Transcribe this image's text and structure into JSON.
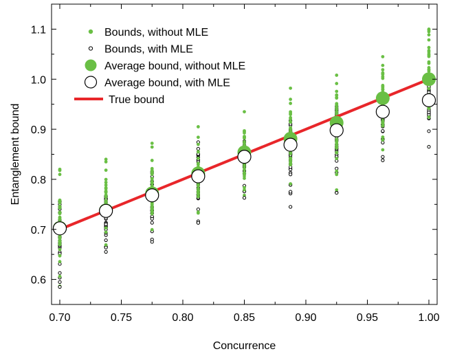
{
  "chart_data": {
    "type": "scatter",
    "title": "",
    "xlabel": "Concurrence",
    "ylabel": "Entanglement bound",
    "xlim": [
      0.7,
      1.0
    ],
    "ylim": [
      0.55,
      1.15
    ],
    "xticks": [
      "0.70",
      "0.75",
      "0.80",
      "0.85",
      "0.90",
      "0.95",
      "1.00"
    ],
    "yticks": [
      "0.6",
      "0.7",
      "0.8",
      "0.9",
      "1.0",
      "1.1"
    ],
    "grid": false,
    "legend_position": "top-left",
    "x": [
      0.7,
      0.7375,
      0.775,
      0.8125,
      0.85,
      0.8875,
      0.925,
      0.9625,
      1.0
    ],
    "series": [
      {
        "name": "Bounds, without MLE",
        "marker": "small-filled-circle",
        "color": "#6abf45",
        "ranges": [
          [
            0.585,
            0.82
          ],
          [
            0.655,
            0.84
          ],
          [
            0.675,
            0.872
          ],
          [
            0.713,
            0.905
          ],
          [
            0.763,
            0.935
          ],
          [
            0.745,
            0.982
          ],
          [
            0.773,
            1.008
          ],
          [
            0.838,
            1.045
          ],
          [
            0.865,
            1.1
          ]
        ]
      },
      {
        "name": "Bounds, with MLE",
        "marker": "small-open-circle",
        "color": "#000000",
        "ranges": [
          [
            0.585,
            0.79
          ],
          [
            0.655,
            0.78
          ],
          [
            0.675,
            0.84
          ],
          [
            0.713,
            0.875
          ],
          [
            0.763,
            0.905
          ],
          [
            0.745,
            0.925
          ],
          [
            0.773,
            0.952
          ],
          [
            0.838,
            0.985
          ],
          [
            0.865,
            1.0
          ]
        ]
      },
      {
        "name": "Average bound, without MLE",
        "marker": "large-filled-circle",
        "color": "#6abf45",
        "values": [
          0.703,
          0.738,
          0.772,
          0.812,
          0.854,
          0.881,
          0.913,
          0.962,
          1.0
        ]
      },
      {
        "name": "Average bound, with MLE",
        "marker": "large-open-circle",
        "color": "#000000",
        "values": [
          0.702,
          0.737,
          0.768,
          0.806,
          0.845,
          0.869,
          0.898,
          0.935,
          0.958
        ]
      },
      {
        "name": "True bound",
        "type": "line",
        "color": "#e8262a",
        "points": [
          [
            0.7,
            0.7
          ],
          [
            1.0,
            1.0
          ]
        ]
      }
    ]
  }
}
